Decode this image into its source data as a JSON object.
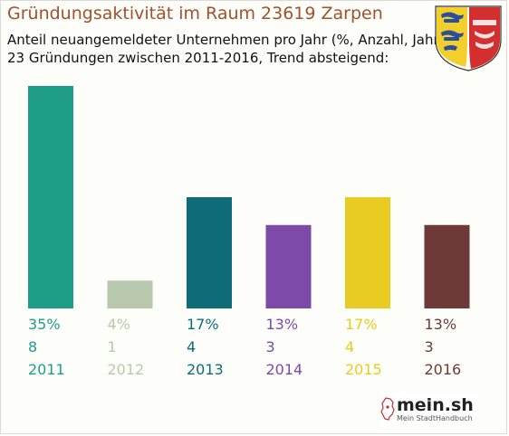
{
  "header": {
    "title": "Gründungsaktivität im Raum 23619 Zarpen",
    "subtitle_line1": "Anteil neuangemeldeter Unternehmen pro Jahr (%, Anzahl, Jahr)",
    "subtitle_line2": "23 Gründungen zwischen 2011-2016, Trend absteigend:"
  },
  "emblem": {
    "icon": "coat-of-arms-icon"
  },
  "brand": {
    "name": "mein.sh",
    "tagline": "Mein StadtHandbuch"
  },
  "chart_data": {
    "type": "bar",
    "title": "Gründungsaktivität im Raum 23619 Zarpen",
    "categories": [
      "2011",
      "2012",
      "2013",
      "2014",
      "2015",
      "2016"
    ],
    "values": [
      8,
      1,
      4,
      3,
      4,
      3
    ],
    "percent_labels": [
      "35%",
      "4%",
      "17%",
      "13%",
      "17%",
      "13%"
    ],
    "count_labels": [
      "8",
      "1",
      "4",
      "3",
      "4",
      "3"
    ],
    "colors": [
      "#1f9e87",
      "#b8c8ad",
      "#0f6b78",
      "#7d4aa8",
      "#e9cc22",
      "#6e3a38"
    ],
    "ylim": [
      0,
      8
    ],
    "grid": false,
    "legend": "none"
  }
}
